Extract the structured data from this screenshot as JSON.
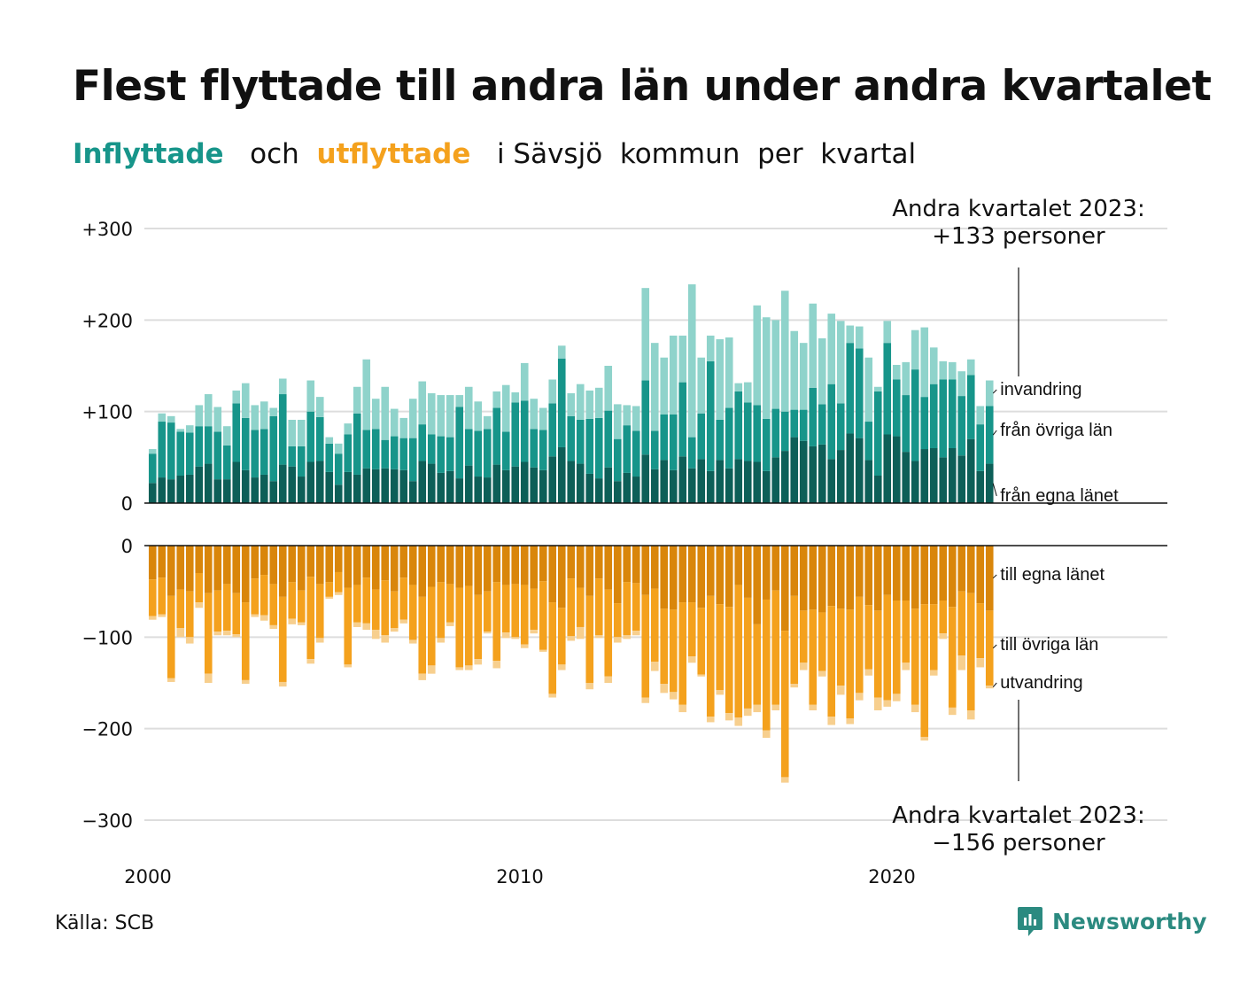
{
  "title": "Flest flyttade till andra län under andra kvartalet",
  "subtitle": {
    "in_word": "Inflyttade",
    "and_word": "och",
    "out_word": "utflyttade",
    "rest": "i Sävsjö  kommun  per  kvartal"
  },
  "source": "Källa: SCB",
  "brand": "Newsworthy",
  "colors": {
    "in_own": "#0d5f58",
    "in_other": "#17958a",
    "in_abroad": "#8fd3cb",
    "out_own": "#d9860b",
    "out_other": "#f4a11d",
    "out_abroad": "#f7cf8e",
    "brand": "#2b8a80"
  },
  "annotations": {
    "top_line1": "Andra kvartalet 2023:",
    "top_line2": "+133 personer",
    "bottom_line1": "Andra kvartalet 2023:",
    "bottom_line2": "−156 personer"
  },
  "chart_data": {
    "type": "bar",
    "stacked": true,
    "x_start_year": 2000,
    "x_end_year": 2023,
    "x_ticks": [
      "2000",
      "2010",
      "2020"
    ],
    "top_panel": {
      "y_ticks": [
        0,
        100,
        200,
        300
      ],
      "y_tick_labels": [
        "0",
        "+100",
        "+200",
        "+300"
      ],
      "ylim": [
        0,
        300
      ],
      "series_labels": [
        "invandring",
        "från övriga län",
        "från egna länet"
      ],
      "from_own_county": [
        22,
        28,
        26,
        30,
        31,
        40,
        43,
        26,
        26,
        45,
        36,
        28,
        31,
        24,
        42,
        40,
        29,
        45,
        46,
        34,
        20,
        34,
        31,
        38,
        37,
        38,
        37,
        36,
        24,
        46,
        43,
        33,
        35,
        27,
        41,
        29,
        28,
        42,
        36,
        40,
        45,
        39,
        36,
        51,
        61,
        46,
        43,
        32,
        27,
        39,
        24,
        33,
        29,
        53,
        37,
        47,
        36,
        51,
        38,
        48,
        35,
        47,
        38,
        48,
        46,
        45,
        35,
        50,
        57,
        72,
        68,
        62,
        64,
        48,
        58,
        76,
        71,
        47,
        30,
        75,
        73,
        56,
        46,
        59,
        60,
        50,
        60,
        52,
        70,
        35,
        43
      ],
      "from_other_counties": [
        32,
        61,
        62,
        48,
        46,
        44,
        41,
        52,
        37,
        64,
        57,
        52,
        50,
        71,
        77,
        22,
        33,
        55,
        48,
        31,
        34,
        41,
        67,
        42,
        44,
        31,
        36,
        35,
        47,
        40,
        32,
        40,
        37,
        78,
        40,
        50,
        53,
        62,
        42,
        70,
        67,
        42,
        44,
        58,
        97,
        49,
        48,
        60,
        66,
        62,
        46,
        52,
        50,
        81,
        42,
        50,
        61,
        81,
        34,
        50,
        120,
        44,
        66,
        74,
        64,
        62,
        57,
        53,
        43,
        30,
        34,
        64,
        44,
        82,
        51,
        99,
        98,
        42,
        92,
        100,
        62,
        62,
        100,
        57,
        70,
        85,
        75,
        65,
        70,
        51,
        63
      ],
      "immigration": [
        5,
        9,
        7,
        3,
        8,
        23,
        35,
        27,
        21,
        14,
        38,
        27,
        30,
        9,
        17,
        29,
        29,
        34,
        22,
        7,
        11,
        12,
        29,
        77,
        33,
        58,
        30,
        22,
        43,
        47,
        45,
        45,
        46,
        13,
        46,
        32,
        14,
        18,
        51,
        11,
        41,
        33,
        24,
        26,
        14,
        25,
        39,
        31,
        33,
        49,
        38,
        22,
        27,
        101,
        96,
        62,
        86,
        51,
        167,
        61,
        28,
        88,
        77,
        9,
        22,
        109,
        111,
        97,
        132,
        86,
        73,
        92,
        72,
        77,
        90,
        19,
        24,
        70,
        5,
        24,
        16,
        36,
        43,
        76,
        40,
        20,
        19,
        27,
        17,
        20,
        28
      ]
    },
    "bottom_panel": {
      "y_ticks": [
        0,
        -100,
        -200,
        -300
      ],
      "y_tick_labels": [
        "0",
        "−100",
        "−200",
        "−300"
      ],
      "ylim": [
        -300,
        0
      ],
      "series_labels": [
        "till egna länet",
        "till övriga län",
        "utvandring"
      ],
      "to_own_county": [
        37,
        35,
        55,
        48,
        50,
        30,
        52,
        49,
        42,
        52,
        62,
        36,
        32,
        42,
        56,
        40,
        49,
        34,
        42,
        40,
        29,
        46,
        43,
        35,
        48,
        38,
        50,
        35,
        43,
        56,
        45,
        40,
        42,
        46,
        44,
        54,
        50,
        40,
        43,
        42,
        43,
        47,
        39,
        62,
        68,
        36,
        46,
        55,
        36,
        48,
        63,
        40,
        41,
        54,
        47,
        69,
        70,
        62,
        62,
        68,
        55,
        64,
        67,
        43,
        57,
        86,
        59,
        49,
        93,
        55,
        71,
        70,
        73,
        66,
        69,
        70,
        56,
        65,
        71,
        54,
        60,
        60,
        69,
        64,
        64,
        60,
        67,
        50,
        52,
        63,
        71
      ],
      "to_other_counties": [
        40,
        40,
        90,
        42,
        50,
        32,
        88,
        45,
        51,
        45,
        85,
        39,
        44,
        45,
        93,
        40,
        35,
        90,
        59,
        16,
        22,
        84,
        41,
        50,
        44,
        60,
        40,
        46,
        60,
        84,
        86,
        61,
        42,
        87,
        87,
        70,
        44,
        86,
        52,
        58,
        65,
        45,
        75,
        100,
        62,
        63,
        43,
        95,
        62,
        95,
        37,
        58,
        52,
        112,
        80,
        82,
        90,
        112,
        59,
        73,
        132,
        94,
        116,
        145,
        121,
        88,
        143,
        125,
        160,
        96,
        57,
        104,
        64,
        121,
        84,
        119,
        105,
        70,
        95,
        115,
        102,
        68,
        105,
        145,
        72,
        36,
        110,
        70,
        128,
        60,
        82
      ],
      "emigration": [
        4,
        3,
        4,
        10,
        7,
        6,
        10,
        4,
        5,
        3,
        4,
        3,
        6,
        4,
        5,
        6,
        3,
        5,
        5,
        2,
        3,
        3,
        5,
        7,
        10,
        8,
        4,
        4,
        4,
        7,
        9,
        5,
        4,
        3,
        5,
        6,
        2,
        8,
        6,
        2,
        4,
        4,
        2,
        4,
        6,
        5,
        13,
        7,
        3,
        7,
        6,
        4,
        5,
        6,
        10,
        10,
        8,
        8,
        7,
        2,
        6,
        5,
        8,
        9,
        8,
        8,
        8,
        6,
        6,
        4,
        8,
        6,
        6,
        9,
        10,
        6,
        8,
        7,
        14,
        7,
        8,
        8,
        8,
        4,
        6,
        6,
        8,
        16,
        10,
        10,
        3
      ]
    }
  }
}
